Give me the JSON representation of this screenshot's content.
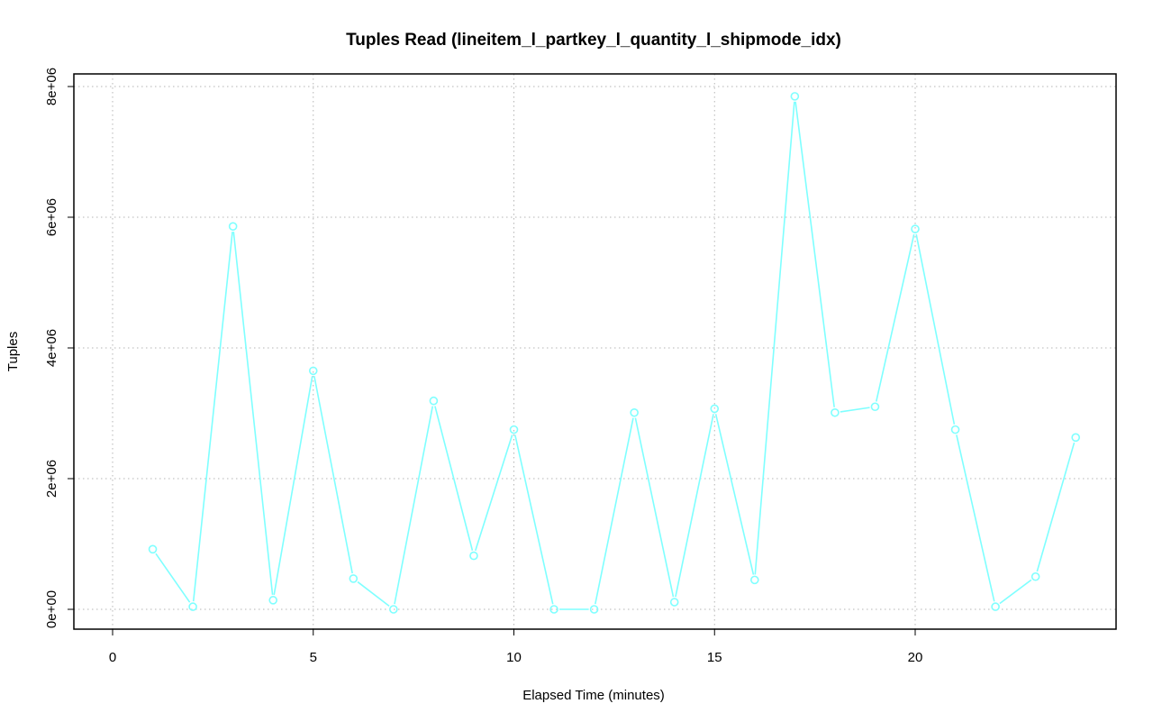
{
  "chart_data": {
    "type": "line",
    "title": "Tuples Read (lineitem_l_partkey_l_quantity_l_shipmode_idx)",
    "xlabel": "Elapsed Time (minutes)",
    "ylabel": "Tuples",
    "xlim": [
      0,
      24
    ],
    "ylim": [
      0,
      8000000
    ],
    "x_ticks": [
      0,
      5,
      10,
      15,
      20
    ],
    "x_tick_labels": [
      "0",
      "5",
      "10",
      "15",
      "20"
    ],
    "y_ticks": [
      0,
      2000000,
      4000000,
      6000000,
      8000000
    ],
    "y_tick_labels": [
      "0e+00",
      "2e+06",
      "4e+06",
      "6e+06",
      "8e+06"
    ],
    "grid": true,
    "series": [
      {
        "color": "#7fffff",
        "marker": "open-circle",
        "x": [
          1,
          2,
          3,
          4,
          5,
          6,
          7,
          8,
          9,
          10,
          11,
          12,
          13,
          14,
          15,
          16,
          17,
          18,
          19,
          20,
          21,
          22,
          23,
          24
        ],
        "y": [
          920000,
          40000,
          5860000,
          140000,
          3650000,
          470000,
          0,
          3190000,
          820000,
          2750000,
          0,
          0,
          3010000,
          110000,
          3070000,
          450000,
          7850000,
          3010000,
          3100000,
          5820000,
          2750000,
          40000,
          500000,
          2630000
        ]
      }
    ]
  }
}
